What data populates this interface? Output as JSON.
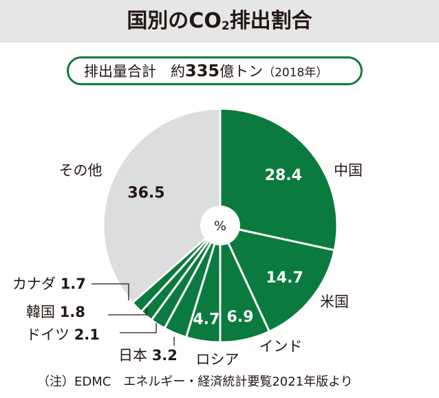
{
  "header": {
    "title_main": "国別のCO",
    "title_sub": "2",
    "title_end": "排出割合"
  },
  "subtitle": {
    "label": "排出量合計　約",
    "amount": "335",
    "unit": "億トン",
    "year": "（2018年）"
  },
  "center_label": "%",
  "footnote": "（注）EDMC　エネルギー・経済統計要覧2021年版より",
  "colors": {
    "green": "#0b7a3e",
    "gray": "#dcdddd",
    "white": "#ffffff",
    "text": "#231815"
  },
  "chart_data": {
    "type": "pie",
    "unit": "%",
    "categories": [
      "中国",
      "米国",
      "インド",
      "ロシア",
      "日本",
      "ドイツ",
      "韓国",
      "カナダ",
      "その他"
    ],
    "values": [
      28.4,
      14.7,
      6.9,
      4.7,
      3.2,
      2.1,
      1.8,
      1.7,
      36.5
    ],
    "value_labels": [
      "28.4",
      "14.7",
      "6.9",
      "4.7",
      "3.2",
      "2.1",
      "1.8",
      "1.7",
      "36.5"
    ],
    "slice_colors": [
      "green",
      "green",
      "green",
      "green",
      "green",
      "green",
      "green",
      "green",
      "gray"
    ],
    "start_angle": "12 o'clock",
    "direction": "clockwise"
  }
}
